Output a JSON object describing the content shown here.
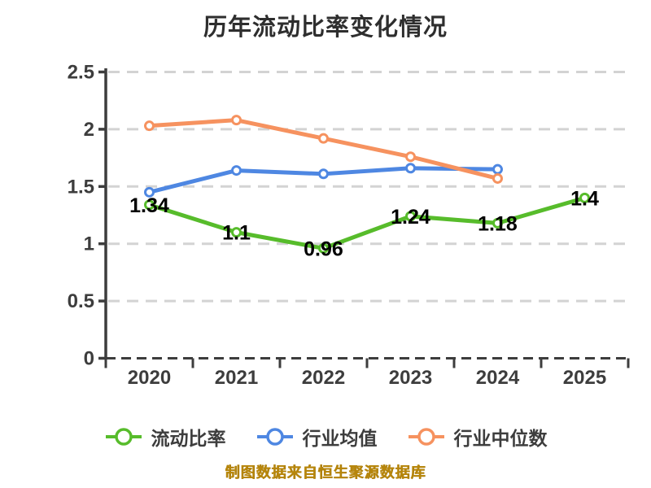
{
  "chart_data": {
    "type": "line",
    "title": "历年流动比率变化情况",
    "categories": [
      "2020",
      "2021",
      "2022",
      "2023",
      "2024",
      "2025"
    ],
    "xlabel": "",
    "ylabel": "",
    "ylim": [
      0,
      2.5
    ],
    "y_ticks": [
      0,
      0.5,
      1,
      1.5,
      2,
      2.5
    ],
    "y_tick_labels": [
      "0",
      "0.5",
      "1",
      "1.5",
      "2",
      "2.5"
    ],
    "grid": "horizontal-dashed",
    "legend_position": "bottom",
    "series": [
      {
        "name": "流动比率",
        "color": "#57bc2b",
        "values": [
          1.34,
          1.1,
          0.96,
          1.24,
          1.18,
          1.4
        ],
        "point_labels": [
          "1.34",
          "1.1",
          "0.96",
          "1.24",
          "1.18",
          "1.4"
        ]
      },
      {
        "name": "行业均值",
        "color": "#4e87e2",
        "values": [
          1.45,
          1.64,
          1.61,
          1.66,
          1.65,
          null
        ],
        "point_labels": null
      },
      {
        "name": "行业中位数",
        "color": "#f6925f",
        "values": [
          2.03,
          2.08,
          1.92,
          1.76,
          1.57,
          null
        ],
        "point_labels": null
      }
    ],
    "source_note": "制图数据来自恒生聚源数据库"
  },
  "style_colors": {
    "grid_line": "#d3d3d3",
    "axis_line": "#3d3d3d",
    "tick_label": "#3d3d3d",
    "point_label": "#000000",
    "marker_fill": "#ffffff",
    "title_text": "#2e2e2e",
    "source_text": "#b8860b"
  }
}
